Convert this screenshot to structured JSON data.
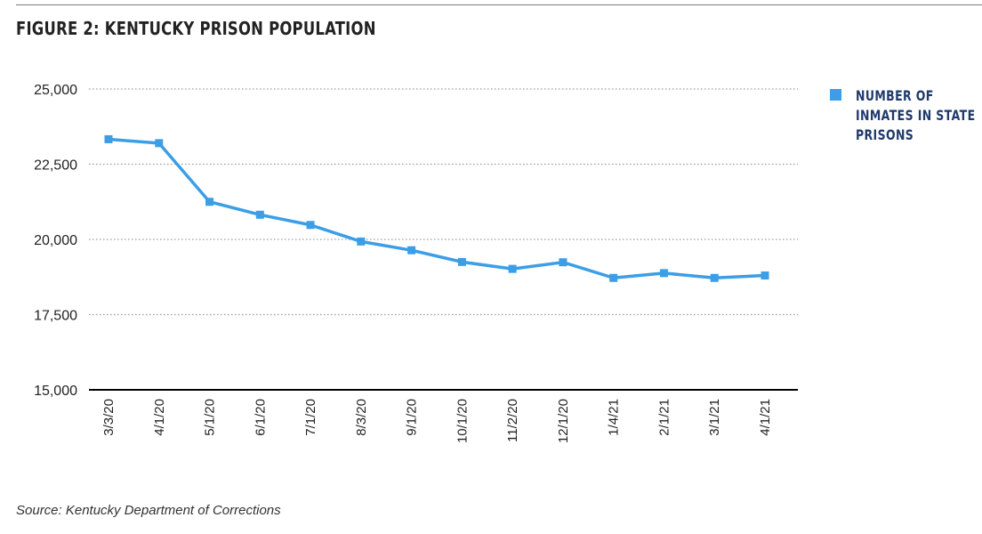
{
  "figure": {
    "title": "FIGURE 2: KENTUCKY PRISON POPULATION",
    "source": "Source: Kentucky Department of Corrections"
  },
  "colors": {
    "series": "#3b9ee6",
    "legend_text": "#1f3a6b",
    "grid": "#9a9a9a",
    "axis": "#000000"
  },
  "chart_data": {
    "type": "line",
    "title": "FIGURE 2: KENTUCKY PRISON POPULATION",
    "xlabel": "",
    "ylabel": "",
    "categories": [
      "3/3/20",
      "4/1/20",
      "5/1/20",
      "6/1/20",
      "7/1/20",
      "8/3/20",
      "9/1/20",
      "10/1/20",
      "11/2/20",
      "12/1/20",
      "1/4/21",
      "2/1/21",
      "3/1/21",
      "4/1/21"
    ],
    "series": [
      {
        "name": "NUMBER OF INMATES IN STATE PRISONS",
        "marker": "square",
        "values": [
          23330,
          23200,
          21250,
          20820,
          20480,
          19930,
          19640,
          19250,
          19020,
          19240,
          18720,
          18880,
          18720,
          18800
        ]
      }
    ],
    "ylim": [
      15000,
      25000
    ],
    "yticks": [
      15000,
      17500,
      20000,
      22500,
      25000
    ],
    "ytick_labels": [
      "15,000",
      "17,500",
      "20,000",
      "22,500",
      "25,000"
    ],
    "grid": "horizontal dotted",
    "legend_position": "right"
  }
}
